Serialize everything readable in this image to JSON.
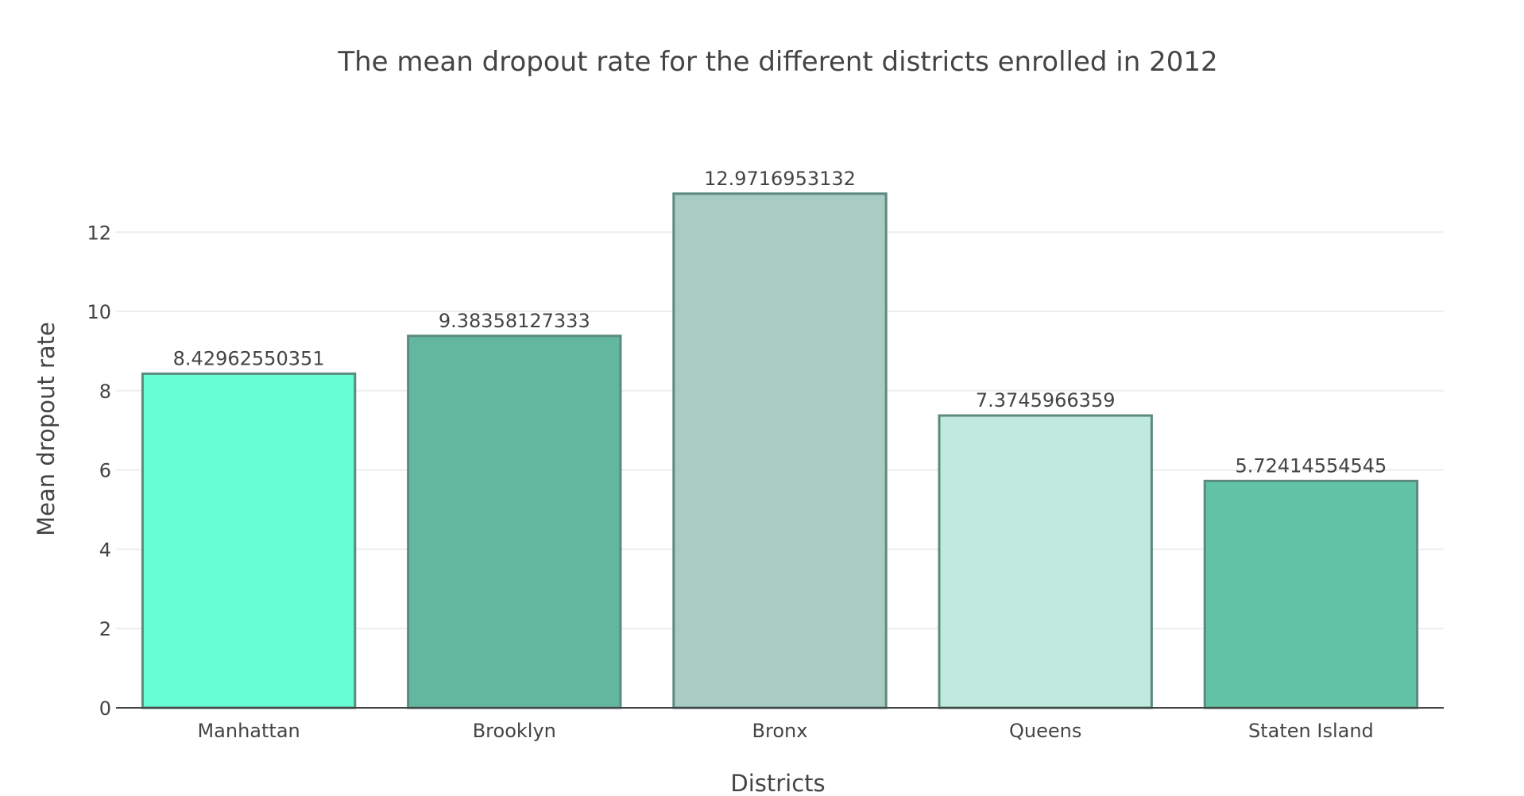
{
  "chart_data": {
    "type": "bar",
    "title": "The mean dropout rate for the different districts enrolled in 2012",
    "xlabel": "Districts",
    "ylabel": "Mean dropout rate",
    "categories": [
      "Manhattan",
      "Brooklyn",
      "Bronx",
      "Queens",
      "Staten Island"
    ],
    "values": [
      8.42962550351,
      9.38358127333,
      12.9716953132,
      7.3745966359,
      5.72414554545
    ],
    "value_labels": [
      "8.42962550351",
      "9.38358127333",
      "12.9716953132",
      "7.3745966359",
      "5.72414554545"
    ],
    "bar_colors": [
      "#66fdd4",
      "#63b79f",
      "#a9ccc2",
      "#c0eadd",
      "#63c4a5"
    ],
    "bar_outline_color": "#5b8a80",
    "ylim": [
      0,
      14.25
    ],
    "yticks": [
      0,
      2,
      4,
      6,
      8,
      10,
      12
    ],
    "grid": true,
    "legend": "none"
  }
}
